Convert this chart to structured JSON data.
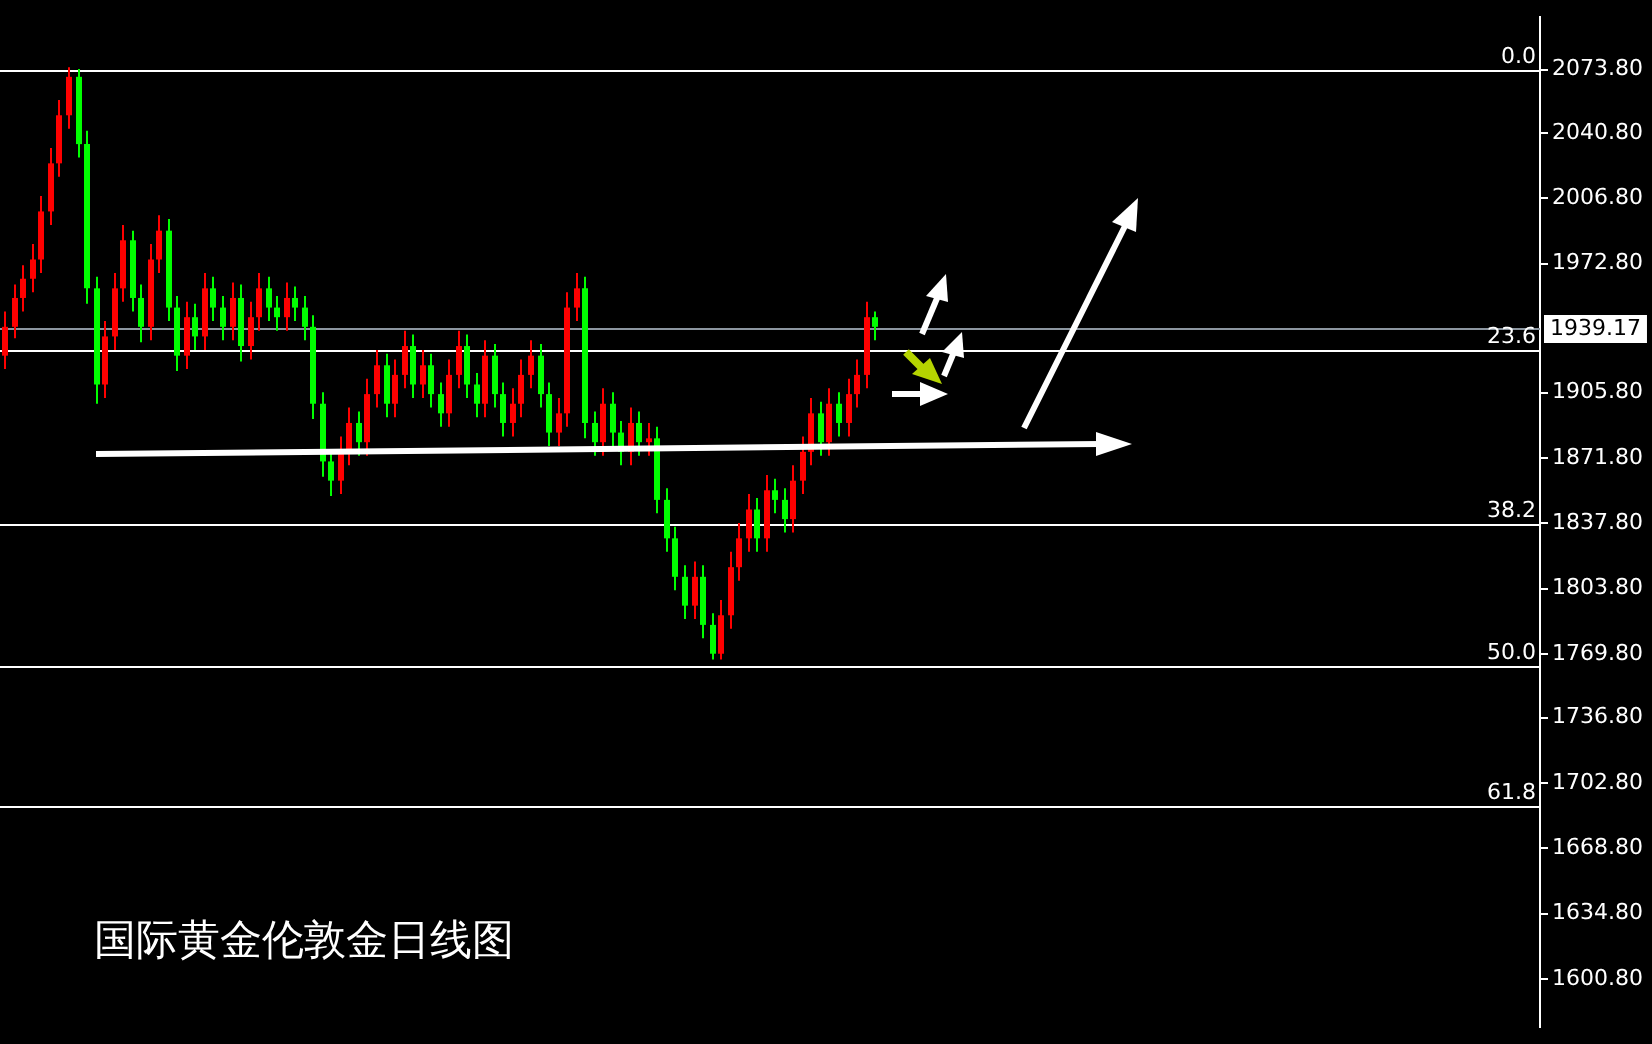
{
  "chart_data": {
    "type": "candlestick",
    "title": "国际黄金伦敦金日线图",
    "categories": [
      null,
      null,
      null,
      null,
      null,
      null,
      null,
      null,
      null,
      null,
      null,
      null,
      null,
      null,
      null,
      null,
      null,
      null,
      null,
      null,
      null,
      null,
      null,
      null,
      null,
      null,
      null,
      null,
      null,
      null,
      null,
      null,
      null,
      null,
      null,
      null,
      null,
      null,
      null,
      null,
      null,
      null,
      null,
      null,
      null,
      null,
      null,
      null,
      null,
      null,
      null,
      null,
      null,
      null,
      null,
      null,
      null,
      null,
      null,
      null,
      null,
      null,
      null,
      null,
      null,
      null,
      null,
      null,
      null,
      null,
      null,
      null,
      null,
      null,
      null,
      null,
      null,
      null,
      null,
      null,
      null,
      null,
      null,
      null,
      null,
      null,
      null,
      null,
      null,
      null,
      null,
      null,
      null,
      null,
      null,
      null,
      null,
      null,
      null,
      null,
      null,
      null,
      null,
      null,
      null,
      null,
      null,
      null,
      null,
      null,
      null,
      null,
      null,
      null,
      null,
      null,
      null,
      null,
      null,
      null,
      null,
      null,
      null,
      null,
      null,
      null,
      null,
      null,
      null,
      null,
      null,
      null,
      null,
      null,
      null,
      null,
      null,
      null,
      null,
      null,
      null,
      null,
      null,
      null,
      null,
      null,
      null,
      null,
      null,
      null,
      null,
      null,
      null,
      null,
      null,
      null,
      null,
      null,
      null,
      null,
      null,
      null,
      null,
      null,
      null,
      null,
      null,
      null,
      null,
      null
    ],
    "ohlc": [
      [
        1925,
        1948,
        1918,
        1940
      ],
      [
        1940,
        1962,
        1934,
        1955
      ],
      [
        1955,
        1972,
        1948,
        1965
      ],
      [
        1965,
        1983,
        1958,
        1975
      ],
      [
        1975,
        2008,
        1968,
        2000
      ],
      [
        2000,
        2033,
        1993,
        2025
      ],
      [
        2025,
        2058,
        2018,
        2050
      ],
      [
        2050,
        2075,
        2043,
        2070
      ],
      [
        2070,
        2074,
        2028,
        2035
      ],
      [
        2035,
        2042,
        1952,
        1960
      ],
      [
        1960,
        1966,
        1900,
        1910
      ],
      [
        1910,
        1943,
        1903,
        1935
      ],
      [
        1935,
        1968,
        1928,
        1960
      ],
      [
        1960,
        1993,
        1953,
        1985
      ],
      [
        1985,
        1990,
        1948,
        1955
      ],
      [
        1955,
        1962,
        1932,
        1940
      ],
      [
        1940,
        1983,
        1933,
        1975
      ],
      [
        1975,
        1998,
        1968,
        1990
      ],
      [
        1990,
        1996,
        1943,
        1950
      ],
      [
        1950,
        1956,
        1917,
        1925
      ],
      [
        1925,
        1953,
        1918,
        1945
      ],
      [
        1945,
        1952,
        1928,
        1935
      ],
      [
        1935,
        1968,
        1928,
        1960
      ],
      [
        1960,
        1966,
        1943,
        1950
      ],
      [
        1950,
        1956,
        1933,
        1940
      ],
      [
        1940,
        1963,
        1933,
        1955
      ],
      [
        1955,
        1962,
        1922,
        1930
      ],
      [
        1930,
        1953,
        1923,
        1945
      ],
      [
        1945,
        1968,
        1938,
        1960
      ],
      [
        1960,
        1966,
        1943,
        1950
      ],
      [
        1950,
        1956,
        1938,
        1945
      ],
      [
        1945,
        1963,
        1938,
        1955
      ],
      [
        1955,
        1961,
        1943,
        1950
      ],
      [
        1950,
        1956,
        1933,
        1940
      ],
      [
        1940,
        1946,
        1892,
        1900
      ],
      [
        1900,
        1906,
        1862,
        1870
      ],
      [
        1870,
        1876,
        1852,
        1860
      ],
      [
        1860,
        1883,
        1853,
        1875
      ],
      [
        1875,
        1898,
        1868,
        1890
      ],
      [
        1890,
        1896,
        1873,
        1880
      ],
      [
        1880,
        1913,
        1873,
        1905
      ],
      [
        1905,
        1928,
        1898,
        1920
      ],
      [
        1920,
        1926,
        1893,
        1900
      ],
      [
        1900,
        1923,
        1893,
        1915
      ],
      [
        1915,
        1938,
        1908,
        1930
      ],
      [
        1930,
        1936,
        1903,
        1910
      ],
      [
        1910,
        1928,
        1903,
        1920
      ],
      [
        1920,
        1926,
        1898,
        1905
      ],
      [
        1905,
        1911,
        1888,
        1895
      ],
      [
        1895,
        1923,
        1888,
        1915
      ],
      [
        1915,
        1938,
        1908,
        1930
      ],
      [
        1930,
        1936,
        1903,
        1910
      ],
      [
        1910,
        1916,
        1893,
        1900
      ],
      [
        1900,
        1933,
        1893,
        1925
      ],
      [
        1925,
        1931,
        1898,
        1905
      ],
      [
        1905,
        1911,
        1883,
        1890
      ],
      [
        1890,
        1908,
        1883,
        1900
      ],
      [
        1900,
        1923,
        1893,
        1915
      ],
      [
        1915,
        1933,
        1908,
        1925
      ],
      [
        1925,
        1931,
        1898,
        1905
      ],
      [
        1905,
        1911,
        1878,
        1885
      ],
      [
        1885,
        1903,
        1878,
        1895
      ],
      [
        1895,
        1958,
        1888,
        1950
      ],
      [
        1950,
        1968,
        1943,
        1960
      ],
      [
        1960,
        1966,
        1882,
        1890
      ],
      [
        1890,
        1896,
        1873,
        1880
      ],
      [
        1880,
        1908,
        1873,
        1900
      ],
      [
        1900,
        1906,
        1878,
        1885
      ],
      [
        1885,
        1891,
        1868,
        1875
      ],
      [
        1875,
        1898,
        1868,
        1890
      ],
      [
        1890,
        1896,
        1873,
        1880
      ],
      [
        1880,
        1890,
        1873,
        1882
      ],
      [
        1882,
        1888,
        1843,
        1850
      ],
      [
        1850,
        1856,
        1823,
        1830
      ],
      [
        1830,
        1836,
        1803,
        1810
      ],
      [
        1810,
        1816,
        1788,
        1795
      ],
      [
        1795,
        1818,
        1788,
        1810
      ],
      [
        1810,
        1816,
        1778,
        1785
      ],
      [
        1785,
        1791,
        1767,
        1770
      ],
      [
        1770,
        1798,
        1767,
        1790
      ],
      [
        1790,
        1823,
        1783,
        1815
      ],
      [
        1815,
        1838,
        1808,
        1830
      ],
      [
        1830,
        1853,
        1823,
        1845
      ],
      [
        1845,
        1851,
        1823,
        1830
      ],
      [
        1830,
        1863,
        1823,
        1855
      ],
      [
        1855,
        1861,
        1843,
        1850
      ],
      [
        1850,
        1856,
        1833,
        1840
      ],
      [
        1840,
        1868,
        1833,
        1860
      ],
      [
        1860,
        1883,
        1853,
        1875
      ],
      [
        1875,
        1903,
        1868,
        1895
      ],
      [
        1895,
        1901,
        1873,
        1880
      ],
      [
        1880,
        1908,
        1873,
        1900
      ],
      [
        1900,
        1906,
        1883,
        1890
      ],
      [
        1890,
        1913,
        1883,
        1905
      ],
      [
        1905,
        1923,
        1898,
        1915
      ],
      [
        1915,
        1953,
        1908,
        1945
      ],
      [
        1945,
        1948,
        1933,
        1940
      ],
      null,
      null,
      null,
      null,
      null,
      null,
      null,
      null,
      null,
      null,
      null,
      null,
      null,
      null,
      null,
      null,
      null,
      null,
      null,
      null,
      null,
      null,
      null,
      null,
      null,
      null,
      null,
      null,
      null,
      null,
      null,
      null,
      null,
      null,
      null,
      null,
      null,
      null,
      null,
      null,
      null,
      null,
      null,
      null,
      null,
      null,
      null,
      null,
      null,
      null,
      null,
      null,
      null,
      null,
      null,
      null,
      null,
      null,
      null,
      null,
      null,
      null,
      null,
      null,
      null,
      null,
      null,
      null,
      null,
      null,
      null,
      null,
      null
    ],
    "colors": [
      "#ff0000",
      "#ff0000",
      "#ff0000",
      "#ff0000",
      "#ff0000",
      "#ff0000",
      "#ff0000",
      "#ff0000",
      "#00ff00",
      "#00ff00",
      "#00ff00",
      "#ff0000",
      "#ff0000",
      "#ff0000",
      "#00ff00",
      "#00ff00",
      "#ff0000",
      "#ff0000",
      "#00ff00",
      "#00ff00",
      "#ff0000",
      "#00ff00",
      "#ff0000",
      "#00ff00",
      "#00ff00",
      "#ff0000",
      "#00ff00",
      "#ff0000",
      "#ff0000",
      "#00ff00",
      "#00ff00",
      "#ff0000",
      "#00ff00",
      "#00ff00",
      "#00ff00",
      "#00ff00",
      "#00ff00",
      "#ff0000",
      "#ff0000",
      "#00ff00",
      "#ff0000",
      "#ff0000",
      "#00ff00",
      "#ff0000",
      "#ff0000",
      "#00ff00",
      "#ff0000",
      "#00ff00",
      "#00ff00",
      "#ff0000",
      "#ff0000",
      "#00ff00",
      "#00ff00",
      "#ff0000",
      "#00ff00",
      "#00ff00",
      "#ff0000",
      "#ff0000",
      "#ff0000",
      "#00ff00",
      "#00ff00",
      "#ff0000",
      "#ff0000",
      "#ff0000",
      "#00ff00",
      "#00ff00",
      "#ff0000",
      "#00ff00",
      "#00ff00",
      "#ff0000",
      "#00ff00",
      "#ff0000",
      "#00ff00",
      "#00ff00",
      "#00ff00",
      "#00ff00",
      "#ff0000",
      "#00ff00",
      "#00ff00",
      "#ff0000",
      "#ff0000",
      "#ff0000",
      "#ff0000",
      "#00ff00",
      "#ff0000",
      "#00ff00",
      "#00ff00",
      "#ff0000",
      "#ff0000",
      "#ff0000",
      "#00ff00",
      "#ff0000",
      "#00ff00",
      "#ff0000",
      "#ff0000",
      "#ff0000",
      "#00ff00",
      null,
      null,
      null,
      null,
      null,
      null,
      null,
      null,
      null,
      null,
      null,
      null,
      null,
      null,
      null,
      null,
      null,
      null,
      null,
      null,
      null,
      null,
      null,
      null,
      null,
      null,
      null,
      null,
      null,
      null,
      null,
      null,
      null,
      null,
      null,
      null,
      null,
      null,
      null,
      null,
      null,
      null,
      null,
      null,
      null,
      null,
      null,
      null,
      null,
      null,
      null,
      null,
      null,
      null,
      null,
      null,
      null,
      null,
      null,
      null,
      null,
      null,
      null,
      null,
      null,
      null,
      null,
      null,
      null,
      null,
      null,
      null,
      null
    ],
    "ylim": [
      1576,
      2101
    ],
    "yticks": [
      {
        "value": 2073.8,
        "label": "2073.80"
      },
      {
        "value": 2040.8,
        "label": "2040.80"
      },
      {
        "value": 2006.8,
        "label": "2006.80"
      },
      {
        "value": 1972.8,
        "label": "1972.80"
      },
      {
        "value": 1905.8,
        "label": "1905.80"
      },
      {
        "value": 1871.8,
        "label": "1871.80"
      },
      {
        "value": 1837.8,
        "label": "1837.80"
      },
      {
        "value": 1803.8,
        "label": "1803.80"
      },
      {
        "value": 1769.8,
        "label": "1769.80"
      },
      {
        "value": 1736.8,
        "label": "1736.80"
      },
      {
        "value": 1702.8,
        "label": "1702.80"
      },
      {
        "value": 1668.8,
        "label": "1668.80"
      },
      {
        "value": 1634.8,
        "label": "1634.80"
      },
      {
        "value": 1600.8,
        "label": "1600.80"
      }
    ],
    "ref_lines": [
      {
        "axis": "y",
        "value": 2074,
        "color": "#ffffff"
      },
      {
        "axis": "y",
        "value": 1939.17,
        "label": "1939.17",
        "color": "#8c96a0"
      },
      {
        "axis": "y",
        "value": 1928,
        "color": "#ffffff"
      },
      {
        "axis": "y",
        "value": 1837.5,
        "color": "#ffffff"
      },
      {
        "axis": "y",
        "value": 1764,
        "color": "#ffffff"
      },
      {
        "axis": "y",
        "value": 1691,
        "color": "#ffffff"
      }
    ],
    "annotations": [
      {
        "text": "0.0",
        "y": 2074
      },
      {
        "text": "23.6",
        "y": 1928
      },
      {
        "text": "38.2",
        "y": 1837.5
      },
      {
        "text": "50.0",
        "y": 1764
      },
      {
        "text": "61.8",
        "y": 1691
      }
    ],
    "tick_labels": "y",
    "grid": false,
    "legend": false
  }
}
